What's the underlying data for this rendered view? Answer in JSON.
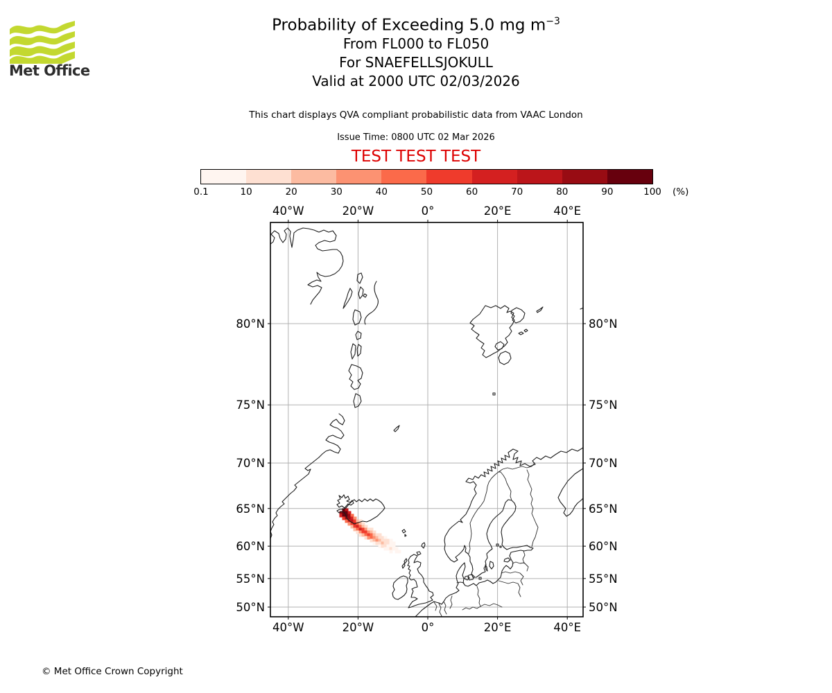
{
  "branding": {
    "logo_text": "Met Office",
    "logo_color": "#c3d830",
    "copyright": "© Met Office Crown Copyright"
  },
  "header": {
    "title_main": "Probability of Exceeding 5.0 mg m",
    "title_sup": "−3",
    "subtitle_lines": [
      "From FL000 to FL050",
      "For SNAEFELLSJOKULL",
      "Valid at 2000 UTC 02/03/2026"
    ],
    "qva_note": "This chart displays QVA compliant probabilistic data from VAAC London",
    "issue_time": "Issue Time: 0800 UTC 02 Mar 2026",
    "test_banner": "TEST TEST TEST",
    "test_color": "#dd0000"
  },
  "colorbar": {
    "unit": "(%)",
    "tick_labels": [
      "0.1",
      "10",
      "20",
      "30",
      "40",
      "50",
      "60",
      "70",
      "80",
      "90",
      "100"
    ],
    "colors": [
      "#fff5f0",
      "#fee0d2",
      "#fcbba1",
      "#fc9272",
      "#fb6a4a",
      "#ef3b2c",
      "#d42020",
      "#bb151a",
      "#980c13",
      "#67000d"
    ]
  },
  "map": {
    "x_ticks": [
      {
        "label": "40°W",
        "lon": -40
      },
      {
        "label": "20°W",
        "lon": -20
      },
      {
        "label": "0°",
        "lon": 0
      },
      {
        "label": "20°E",
        "lon": 20
      },
      {
        "label": "40°E",
        "lon": 40
      }
    ],
    "y_ticks": [
      {
        "label": "80°N",
        "lat": 80
      },
      {
        "label": "75°N",
        "lat": 75
      },
      {
        "label": "70°N",
        "lat": 70
      },
      {
        "label": "65°N",
        "lat": 65
      },
      {
        "label": "60°N",
        "lat": 60
      },
      {
        "label": "55°N",
        "lat": 55
      },
      {
        "label": "50°N",
        "lat": 50
      }
    ],
    "extent": {
      "lon_min": -45.1,
      "lon_max": 44.6,
      "lat_min": 48.2,
      "lat_max": 84.0
    },
    "grid_color": "#b0b0b0",
    "coast_color": "#1c1c1c"
  },
  "chart_data": {
    "type": "heatmap",
    "title": "Probability of Exceeding 5.0 mg m-3",
    "volcano": "SNAEFELLSJOKULL",
    "flight_levels": "FL000 to FL050",
    "valid_time": "2000 UTC 02/03/2026",
    "issue_time": "0800 UTC 02 Mar 2026",
    "source": "VAAC London",
    "probability_bin_edges_percent": [
      0.1,
      10,
      20,
      30,
      40,
      50,
      60,
      70,
      80,
      90,
      100
    ],
    "bin_colors": [
      "#fff5f0",
      "#fee0d2",
      "#fcbba1",
      "#fc9272",
      "#fb6a4a",
      "#ef3b2c",
      "#d42020",
      "#bb151a",
      "#980c13",
      "#67000d"
    ],
    "plume_origin_lonlat": [
      -23.8,
      64.8
    ],
    "plume_direction": "southeast",
    "cell_size_px": 4,
    "cells": [
      [
        496,
        736,
        9
      ],
      [
        500,
        736,
        7
      ],
      [
        492,
        740,
        8
      ],
      [
        496,
        740,
        9
      ],
      [
        500,
        740,
        9
      ],
      [
        504,
        740,
        6
      ],
      [
        492,
        744,
        6
      ],
      [
        496,
        744,
        9
      ],
      [
        500,
        744,
        9
      ],
      [
        504,
        744,
        8
      ],
      [
        508,
        744,
        4
      ],
      [
        496,
        748,
        5
      ],
      [
        500,
        748,
        8
      ],
      [
        504,
        748,
        8
      ],
      [
        508,
        748,
        6
      ],
      [
        512,
        748,
        3
      ],
      [
        500,
        752,
        4
      ],
      [
        504,
        752,
        6
      ],
      [
        508,
        752,
        7
      ],
      [
        512,
        752,
        5
      ],
      [
        516,
        752,
        2
      ],
      [
        520,
        752,
        1
      ],
      [
        504,
        756,
        3
      ],
      [
        508,
        756,
        5
      ],
      [
        512,
        756,
        6
      ],
      [
        516,
        756,
        4
      ],
      [
        520,
        756,
        2
      ],
      [
        524,
        756,
        1
      ],
      [
        508,
        760,
        2
      ],
      [
        512,
        760,
        5
      ],
      [
        516,
        760,
        6
      ],
      [
        520,
        760,
        4
      ],
      [
        524,
        760,
        2
      ],
      [
        528,
        760,
        1
      ],
      [
        512,
        764,
        2
      ],
      [
        516,
        764,
        4
      ],
      [
        520,
        764,
        6
      ],
      [
        524,
        764,
        5
      ],
      [
        528,
        764,
        3
      ],
      [
        532,
        764,
        1
      ],
      [
        536,
        764,
        1
      ],
      [
        516,
        768,
        1
      ],
      [
        520,
        768,
        3
      ],
      [
        524,
        768,
        5
      ],
      [
        528,
        768,
        5
      ],
      [
        532,
        768,
        3
      ],
      [
        536,
        768,
        2
      ],
      [
        540,
        768,
        1
      ],
      [
        520,
        772,
        1
      ],
      [
        524,
        772,
        2
      ],
      [
        528,
        772,
        4
      ],
      [
        532,
        772,
        5
      ],
      [
        536,
        772,
        4
      ],
      [
        540,
        772,
        2
      ],
      [
        544,
        772,
        1
      ],
      [
        548,
        772,
        1
      ],
      [
        528,
        776,
        1
      ],
      [
        532,
        776,
        3
      ],
      [
        536,
        776,
        4
      ],
      [
        540,
        776,
        3
      ],
      [
        544,
        776,
        2
      ],
      [
        548,
        776,
        1
      ],
      [
        552,
        776,
        1
      ],
      [
        556,
        776,
        0
      ],
      [
        536,
        780,
        1
      ],
      [
        540,
        780,
        2
      ],
      [
        544,
        780,
        3
      ],
      [
        548,
        780,
        2
      ],
      [
        552,
        780,
        1
      ],
      [
        556,
        780,
        1
      ],
      [
        560,
        780,
        1
      ],
      [
        564,
        780,
        0
      ],
      [
        540,
        784,
        0
      ],
      [
        544,
        784,
        1
      ],
      [
        548,
        784,
        1
      ],
      [
        552,
        784,
        2
      ],
      [
        556,
        784,
        1
      ],
      [
        560,
        784,
        1
      ],
      [
        564,
        784,
        0
      ],
      [
        568,
        784,
        0
      ],
      [
        548,
        788,
        0
      ],
      [
        552,
        788,
        1
      ],
      [
        556,
        788,
        1
      ],
      [
        560,
        788,
        0
      ],
      [
        564,
        788,
        0
      ],
      [
        568,
        788,
        0
      ],
      [
        556,
        792,
        0
      ],
      [
        560,
        792,
        0
      ],
      [
        564,
        792,
        1
      ],
      [
        568,
        792,
        0
      ],
      [
        572,
        792,
        0
      ],
      [
        564,
        796,
        0
      ],
      [
        572,
        796,
        0
      ],
      [
        576,
        796,
        0
      ]
    ]
  }
}
